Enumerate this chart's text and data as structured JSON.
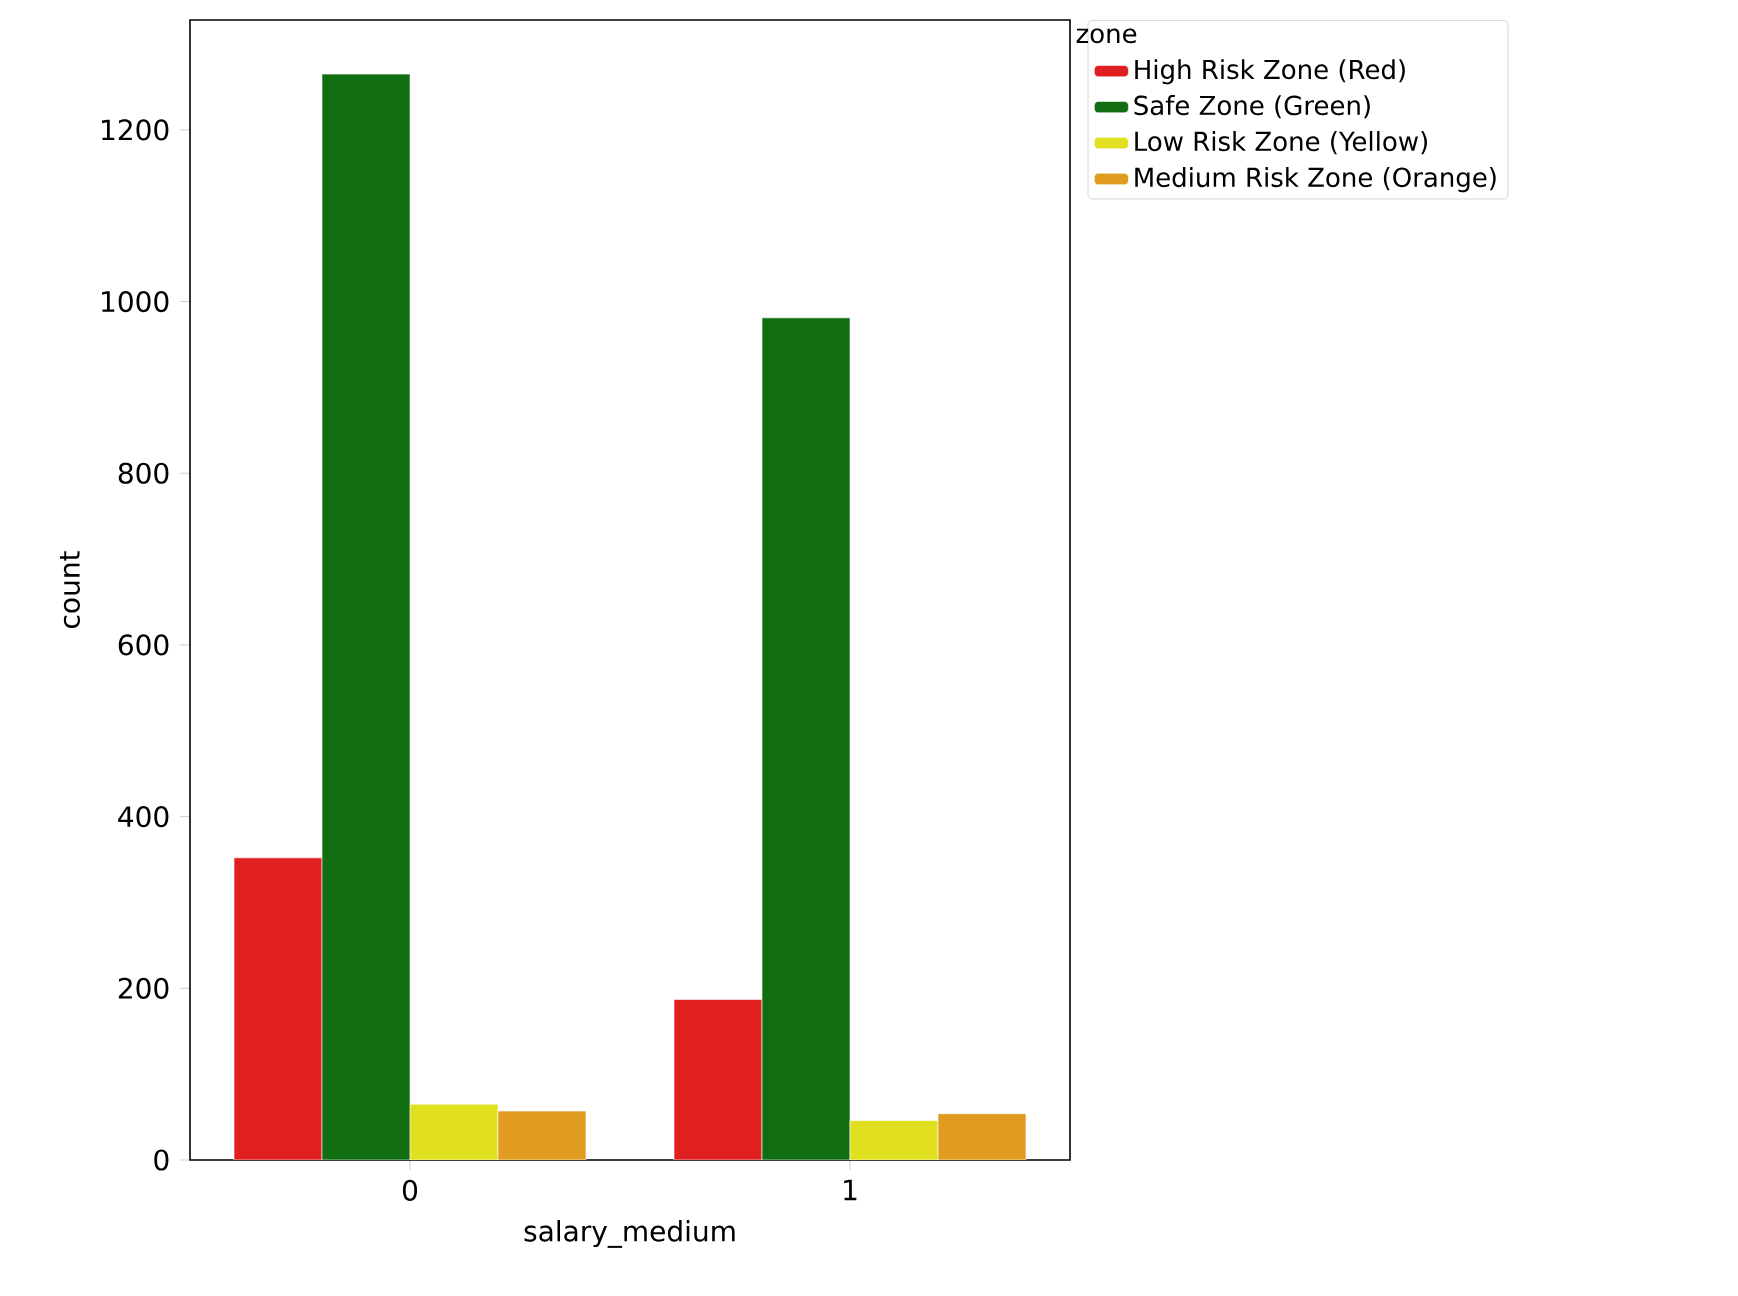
{
  "chart_data": {
    "type": "bar",
    "xlabel": "salary_medium",
    "ylabel": "count",
    "legend_title": "zone",
    "categories": [
      "0",
      "1"
    ],
    "series": [
      {
        "name": "High Risk Zone (Red)",
        "color": "#e02020",
        "values": [
          352,
          187
        ]
      },
      {
        "name": "Safe Zone (Green)",
        "color": "#116d11",
        "values": [
          1265,
          981
        ]
      },
      {
        "name": "Low Risk Zone (Yellow)",
        "color": "#e0e020",
        "values": [
          65,
          46
        ]
      },
      {
        "name": "Medium Risk Zone (Orange)",
        "color": "#e09c20",
        "values": [
          57,
          54
        ]
      }
    ],
    "ylim": [
      0,
      1328
    ],
    "yticks": [
      0,
      200,
      400,
      600,
      800,
      1000,
      1200
    ],
    "legend": "right"
  }
}
